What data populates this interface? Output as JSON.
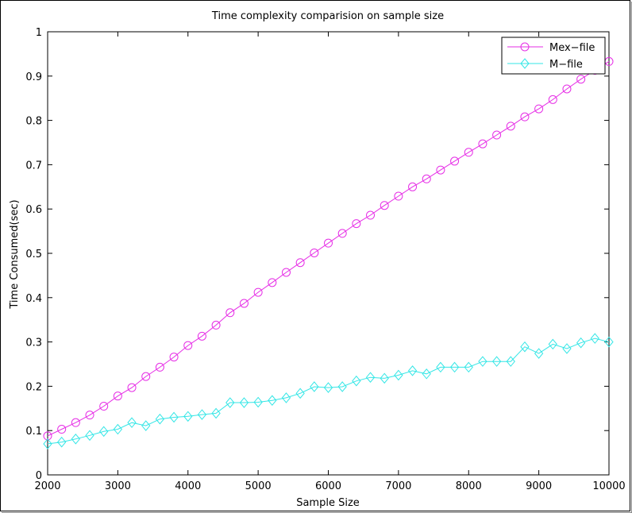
{
  "chart_data": {
    "type": "line",
    "title": "Time complexity comparision on sample size",
    "xlabel": "Sample Size",
    "ylabel": "Time Consumed(sec)",
    "xlim": [
      2000,
      10000
    ],
    "ylim": [
      0,
      1
    ],
    "xticks": [
      2000,
      3000,
      4000,
      5000,
      6000,
      7000,
      8000,
      9000,
      10000
    ],
    "yticks": [
      0,
      0.1,
      0.2,
      0.3,
      0.4,
      0.5,
      0.6,
      0.7,
      0.8,
      0.9,
      1
    ],
    "ytick_labels": [
      "0",
      "0.1",
      "0.2",
      "0.3",
      "0.4",
      "0.5",
      "0.6",
      "0.7",
      "0.8",
      "0.9",
      "1"
    ],
    "grid": false,
    "legend_position": "top-right",
    "x": [
      2000,
      2200,
      2400,
      2600,
      2800,
      3000,
      3200,
      3400,
      3600,
      3800,
      4000,
      4200,
      4400,
      4600,
      4800,
      5000,
      5200,
      5400,
      5600,
      5800,
      6000,
      6200,
      6400,
      6600,
      6800,
      7000,
      7200,
      7400,
      7600,
      7800,
      8000,
      8200,
      8400,
      8600,
      8800,
      9000,
      9200,
      9400,
      9600,
      9800,
      10000
    ],
    "series": [
      {
        "name": "Mex−file",
        "color": "#e62ee6",
        "marker": "circle",
        "values": [
          0.088,
          0.103,
          0.118,
          0.135,
          0.155,
          0.178,
          0.197,
          0.222,
          0.243,
          0.266,
          0.292,
          0.313,
          0.338,
          0.366,
          0.387,
          0.412,
          0.434,
          0.457,
          0.479,
          0.501,
          0.523,
          0.545,
          0.567,
          0.586,
          0.608,
          0.629,
          0.65,
          0.668,
          0.688,
          0.708,
          0.728,
          0.747,
          0.767,
          0.787,
          0.808,
          0.826,
          0.847,
          0.871,
          0.893,
          0.913,
          0.933
        ]
      },
      {
        "name": "M−file",
        "color": "#33e6e6",
        "marker": "diamond",
        "values": [
          0.07,
          0.074,
          0.081,
          0.089,
          0.098,
          0.103,
          0.118,
          0.111,
          0.126,
          0.13,
          0.132,
          0.136,
          0.139,
          0.163,
          0.163,
          0.164,
          0.168,
          0.174,
          0.184,
          0.199,
          0.197,
          0.199,
          0.212,
          0.22,
          0.218,
          0.225,
          0.235,
          0.228,
          0.243,
          0.243,
          0.243,
          0.256,
          0.256,
          0.256,
          0.289,
          0.274,
          0.295,
          0.285,
          0.298,
          0.308,
          0.3
        ]
      }
    ]
  }
}
